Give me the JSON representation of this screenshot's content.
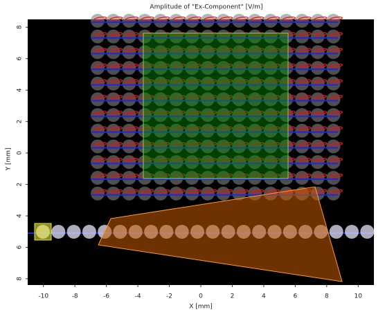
{
  "chart_data": {
    "type": "field",
    "title": "Amplitude of \"Ex-Component\"  [V/m]",
    "x_label": "X [mm]",
    "y_label": "Y [mm]",
    "xlim": [
      -11,
      11
    ],
    "ylim": [
      -8.4,
      8.5
    ],
    "xticks": [
      -10,
      -8,
      -6,
      -4,
      -2,
      0,
      2,
      4,
      6,
      8,
      10
    ],
    "yticks": [
      {
        "value": -8,
        "label": "8"
      },
      {
        "value": -6,
        "label": "6"
      },
      {
        "value": -4,
        "label": "4"
      },
      {
        "value": -2,
        "label": "2"
      },
      0,
      2,
      4,
      6,
      8
    ]
  }
}
